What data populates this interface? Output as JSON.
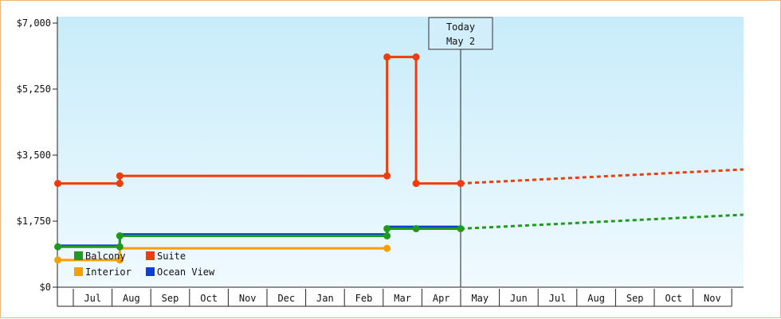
{
  "chart_data": {
    "type": "line",
    "title": "",
    "ylabel": "",
    "xlabel": "",
    "ylim": [
      0,
      7000
    ],
    "yticks": [
      {
        "value": 0,
        "label": "$0"
      },
      {
        "value": 1750,
        "label": "$1,750"
      },
      {
        "value": 3500,
        "label": "$3,500"
      },
      {
        "value": 5250,
        "label": "$5,250"
      },
      {
        "value": 7000,
        "label": "$7,000"
      }
    ],
    "x_months": [
      "Jul",
      "Aug",
      "Sep",
      "Oct",
      "Nov",
      "Dec",
      "Jan",
      "Feb",
      "Mar",
      "Apr",
      "May",
      "Jun",
      "Jul",
      "Aug",
      "Sep",
      "Oct",
      "Nov"
    ],
    "today": {
      "label_line1": "Today",
      "label_line2": "May 2",
      "x": 10.0
    },
    "x_range": [
      -0.4,
      17.3
    ],
    "step_chart": true,
    "series": [
      {
        "name": "Balcony",
        "color": "#1f9a1f",
        "points": [
          [
            -0.4,
            1070
          ],
          [
            1.2,
            1070
          ],
          [
            1.2,
            1360
          ],
          [
            8.1,
            1360
          ],
          [
            8.1,
            1550
          ],
          [
            8.85,
            1550
          ],
          [
            10.0,
            1550
          ]
        ],
        "markers": [
          [
            -0.4,
            1070
          ],
          [
            1.2,
            1070
          ],
          [
            1.2,
            1360
          ],
          [
            8.1,
            1360
          ],
          [
            8.1,
            1550
          ],
          [
            8.85,
            1550
          ],
          [
            10.0,
            1550
          ]
        ],
        "forecast": [
          [
            10.0,
            1550
          ],
          [
            17.3,
            1920
          ]
        ]
      },
      {
        "name": "Suite",
        "color": "#f03c0a",
        "points": [
          [
            -0.4,
            2750
          ],
          [
            1.2,
            2750
          ],
          [
            1.2,
            2950
          ],
          [
            8.1,
            2950
          ],
          [
            8.1,
            6100
          ],
          [
            8.85,
            6100
          ],
          [
            8.85,
            2750
          ],
          [
            10.0,
            2750
          ]
        ],
        "markers": [
          [
            -0.4,
            2750
          ],
          [
            1.2,
            2750
          ],
          [
            1.2,
            2950
          ],
          [
            8.1,
            2950
          ],
          [
            8.1,
            6100
          ],
          [
            8.85,
            6100
          ],
          [
            8.85,
            2750
          ],
          [
            10.0,
            2750
          ]
        ],
        "forecast": [
          [
            10.0,
            2750
          ],
          [
            17.3,
            3120
          ]
        ]
      },
      {
        "name": "Interior",
        "color": "#f4a000",
        "points": [
          [
            -0.4,
            720
          ],
          [
            1.2,
            720
          ],
          [
            1.2,
            1030
          ],
          [
            8.1,
            1030
          ]
        ],
        "markers": [
          [
            -0.4,
            720
          ],
          [
            1.2,
            720
          ],
          [
            8.1,
            1030
          ]
        ],
        "forecast": []
      },
      {
        "name": "Ocean View",
        "color": "#0b3fd6",
        "points": [
          [
            -0.4,
            1100
          ],
          [
            1.2,
            1100
          ],
          [
            1.2,
            1400
          ],
          [
            8.1,
            1400
          ],
          [
            8.1,
            1600
          ],
          [
            8.85,
            1600
          ],
          [
            10.0,
            1600
          ]
        ],
        "markers": [],
        "forecast": []
      }
    ],
    "legend_order": [
      "Balcony",
      "Suite",
      "Interior",
      "Ocean View"
    ],
    "legend_position": "bottom-left",
    "grid": false,
    "background": [
      "#c8ecfa",
      "#f0faff"
    ]
  }
}
